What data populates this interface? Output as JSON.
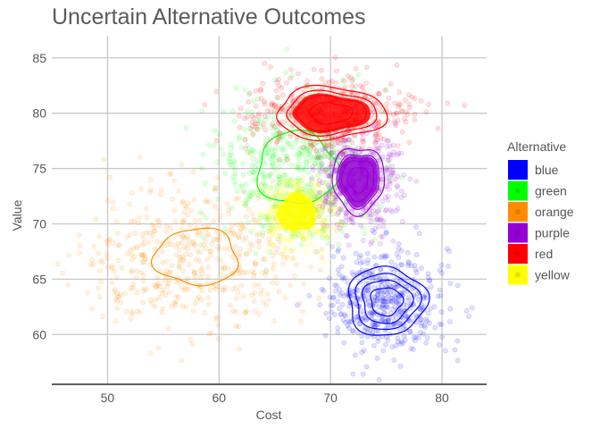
{
  "chart_data": {
    "type": "scatter",
    "title": "Uncertain Alternative Outcomes",
    "xlabel": "Cost",
    "ylabel": "Value",
    "xlim": [
      45,
      84
    ],
    "ylim": [
      55.5,
      87
    ],
    "x_ticks": [
      50,
      60,
      70,
      80
    ],
    "y_ticks": [
      60,
      65,
      70,
      75,
      80,
      85
    ],
    "x_tick_labels": [
      "50",
      "60",
      "70",
      "80"
    ],
    "y_tick_labels": [
      "60",
      "65",
      "70",
      "75",
      "80",
      "85"
    ],
    "grid": true,
    "legend": {
      "title": "Alternative",
      "placement": "right"
    },
    "overlay": "2D density contours per series",
    "series": [
      {
        "name": "blue",
        "color": "#0000ff",
        "center": [
          75,
          63
        ],
        "spread": [
          2.6,
          2.3
        ],
        "points": 500
      },
      {
        "name": "green",
        "color": "#00ff00",
        "center": [
          67,
          75
        ],
        "spread": [
          3.6,
          3.3
        ],
        "points": 500
      },
      {
        "name": "orange",
        "color": "#ff8c00",
        "center": [
          58,
          67
        ],
        "spread": [
          5.0,
          3.4
        ],
        "points": 500
      },
      {
        "name": "purple",
        "color": "#9400d3",
        "center": [
          72.5,
          74
        ],
        "spread": [
          1.8,
          2.3
        ],
        "points": 500
      },
      {
        "name": "red",
        "color": "#ff0000",
        "center": [
          70,
          80
        ],
        "spread": [
          3.5,
          1.7
        ],
        "points": 500
      },
      {
        "name": "yellow",
        "color": "#ffff00",
        "center": [
          67,
          71
        ],
        "spread": [
          1.5,
          1.5
        ],
        "points": 500
      }
    ]
  }
}
